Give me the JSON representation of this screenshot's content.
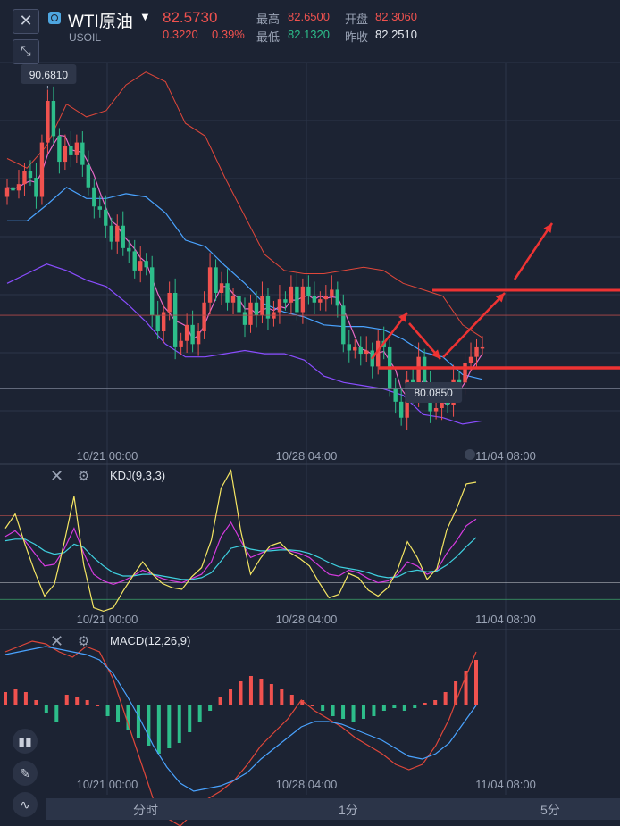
{
  "header": {
    "symbol_name": "WTI原油",
    "symbol_code": "USOIL",
    "last_price": "82.5730",
    "change": "0.3220",
    "change_pct": "0.39%",
    "high_label": "最高",
    "high_value": "82.6500",
    "open_label": "开盘",
    "open_value": "82.3060",
    "low_label": "最低",
    "low_value": "82.1320",
    "prev_close_label": "昨收",
    "prev_close_value": "82.2510"
  },
  "controls": {
    "close_icon": "close-icon",
    "shrink_icon": "shrink-icon",
    "side_tools": [
      "candles-icon",
      "pencil-icon",
      "indicator-icon"
    ]
  },
  "time_tabs": [
    "分时",
    "1分",
    "5分"
  ],
  "colors": {
    "background": "#1c2333",
    "up": "#f0524f",
    "down": "#2dbd8a",
    "upper_band": "#e0473a",
    "lower_band": "#8a4dff",
    "mid_band": "#e96ac9",
    "ma": "#4aa3ff",
    "k_line": "#f5e663",
    "d_line": "#3fd1e0",
    "j_line": "#d63be0",
    "annotation": "#ee3333"
  },
  "chart_data": [
    {
      "type": "candlestick",
      "x_labels": [
        "10/21 00:00",
        "10/28 04:00",
        "11/04 08:00"
      ],
      "ylim": [
        79.5,
        91.5
      ],
      "max_marker": "90.6810",
      "min_marker": "80.0850",
      "close": [
        87.6,
        87.5,
        87.7,
        88.1,
        87.9,
        87.3,
        89.0,
        90.3,
        89.2,
        88.4,
        88.9,
        88.6,
        89.0,
        88.3,
        87.6,
        87.0,
        86.9,
        86.4,
        85.9,
        86.4,
        85.7,
        85.6,
        85.0,
        85.3,
        85.1,
        83.6,
        83.1,
        83.7,
        84.3,
        82.6,
        82.8,
        83.3,
        82.7,
        83.1,
        84.0,
        85.1,
        84.3,
        84.6,
        84.0,
        84.2,
        83.7,
        83.3,
        84.0,
        83.6,
        84.2,
        83.5,
        83.7,
        84.1,
        84.0,
        84.5,
        83.7,
        84.5,
        84.2,
        84.0,
        84.1,
        84.2,
        84.4,
        83.9,
        82.7,
        82.5,
        82.6,
        82.4,
        82.5,
        82.0,
        82.8,
        82.6,
        81.3,
        80.9,
        80.4,
        81.6,
        81.1,
        82.3,
        81.5,
        80.6,
        80.7,
        81.0,
        80.8,
        81.6,
        81.5,
        82.1,
        82.3,
        82.6,
        82.6
      ],
      "bollinger_upper_approx": [
        88.5,
        88.2,
        88.9,
        90.2,
        89.8,
        90.0,
        90.8,
        91.2,
        90.9,
        89.6,
        89.2,
        87.9,
        86.7,
        85.5,
        85.0,
        84.9,
        84.9,
        85.0,
        85.1,
        85.0,
        84.6,
        84.4,
        84.2,
        83.3,
        82.9
      ],
      "bollinger_lower_approx": [
        84.6,
        84.9,
        85.2,
        85.0,
        84.7,
        84.5,
        84.0,
        83.4,
        82.7,
        82.3,
        82.3,
        82.4,
        82.5,
        82.4,
        82.4,
        82.2,
        81.7,
        81.5,
        81.4,
        81.3,
        81.1,
        80.5,
        80.4,
        80.2,
        80.3
      ],
      "annotations": [
        "resistance-line",
        "support-line",
        "red-arrows"
      ]
    },
    {
      "type": "line",
      "title": "KDJ(9,3,3)",
      "series": [
        {
          "name": "K",
          "values": [
            75,
            82,
            70,
            55,
            40,
            42,
            60,
            85,
            55,
            30,
            22,
            18,
            22,
            28,
            35,
            30,
            25,
            22,
            20,
            25,
            30,
            45,
            75,
            92,
            70,
            50,
            55,
            60,
            62,
            58,
            55,
            50,
            40,
            30,
            28,
            35,
            32,
            25,
            20,
            22,
            30,
            45,
            40,
            30,
            35,
            55,
            70,
            88,
            96
          ]
        },
        {
          "name": "D",
          "values": [
            70,
            72,
            72,
            66,
            58,
            54,
            56,
            66,
            62,
            50,
            40,
            32,
            28,
            28,
            30,
            30,
            28,
            26,
            24,
            24,
            26,
            32,
            46,
            61,
            64,
            60,
            58,
            58,
            59,
            59,
            58,
            55,
            50,
            44,
            39,
            37,
            35,
            32,
            28,
            26,
            27,
            33,
            35,
            33,
            34,
            41,
            51,
            63,
            74
          ]
        },
        {
          "name": "J",
          "values": [
            85,
            102,
            66,
            33,
            4,
            18,
            68,
            123,
            41,
            -10,
            -14,
            -10,
            10,
            28,
            45,
            30,
            19,
            14,
            12,
            27,
            38,
            71,
            133,
            154,
            82,
            30,
            49,
            64,
            68,
            56,
            49,
            40,
            20,
            2,
            6,
            31,
            26,
            11,
            4,
            14,
            36,
            69,
            50,
            24,
            37,
            83,
            108,
            138,
            140
          ]
        }
      ]
    },
    {
      "type": "bar+line",
      "title": "MACD(12,26,9)",
      "histogram": [
        0.05,
        0.06,
        0.05,
        0.02,
        -0.03,
        -0.06,
        0.04,
        0.03,
        0.02,
        0.0,
        -0.04,
        -0.06,
        -0.09,
        -0.12,
        -0.15,
        -0.18,
        -0.16,
        -0.14,
        -0.1,
        -0.06,
        -0.02,
        0.03,
        0.06,
        0.09,
        0.11,
        0.1,
        0.08,
        0.06,
        0.04,
        0.02,
        0.0,
        -0.02,
        -0.04,
        -0.05,
        -0.06,
        -0.05,
        -0.04,
        -0.02,
        -0.01,
        -0.02,
        -0.01,
        0.01,
        0.02,
        0.05,
        0.09,
        0.13,
        0.17
      ],
      "dif": [
        0.2,
        0.22,
        0.24,
        0.23,
        0.2,
        0.18,
        0.22,
        0.2,
        0.1,
        -0.05,
        -0.2,
        -0.35,
        -0.42,
        -0.45,
        -0.4,
        -0.35,
        -0.32,
        -0.28,
        -0.22,
        -0.15,
        -0.1,
        -0.05,
        0.02,
        -0.02,
        -0.05,
        -0.08,
        -0.12,
        -0.15,
        -0.18,
        -0.22,
        -0.24,
        -0.22,
        -0.15,
        -0.05,
        0.08,
        0.2
      ],
      "dea": [
        0.19,
        0.2,
        0.21,
        0.22,
        0.21,
        0.2,
        0.19,
        0.17,
        0.12,
        0.04,
        -0.05,
        -0.15,
        -0.23,
        -0.29,
        -0.32,
        -0.31,
        -0.3,
        -0.28,
        -0.25,
        -0.2,
        -0.16,
        -0.12,
        -0.08,
        -0.06,
        -0.06,
        -0.07,
        -0.09,
        -0.11,
        -0.13,
        -0.16,
        -0.19,
        -0.2,
        -0.18,
        -0.14,
        -0.07,
        0.0
      ]
    }
  ]
}
